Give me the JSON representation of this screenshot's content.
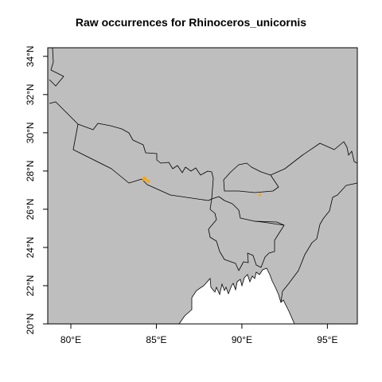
{
  "title": "Raw occurrences for Rhinoceros_unicornis",
  "colors": {
    "land": "#bebebe",
    "sea": "#ffffff",
    "border": "#000000",
    "occurrence": "#ffa500"
  },
  "axes": {
    "x_ticks": [
      {
        "value": 80,
        "label": "80°E"
      },
      {
        "value": 85,
        "label": "85°E"
      },
      {
        "value": 90,
        "label": "90°E"
      },
      {
        "value": 95,
        "label": "95°E"
      }
    ],
    "y_ticks": [
      {
        "value": 20,
        "label": "20°N"
      },
      {
        "value": 22,
        "label": "22°N"
      },
      {
        "value": 24,
        "label": "24°N"
      },
      {
        "value": 26,
        "label": "26°N"
      },
      {
        "value": 28,
        "label": "28°N"
      },
      {
        "value": 30,
        "label": "30°N"
      },
      {
        "value": 32,
        "label": "32°N"
      },
      {
        "value": 34,
        "label": "34°N"
      }
    ],
    "xlim": [
      78.65,
      96.75
    ],
    "ylim": [
      20.0,
      34.45
    ]
  },
  "occurrences": [
    {
      "lon": 84.25,
      "lat": 27.55
    },
    {
      "lon": 84.35,
      "lat": 27.6
    },
    {
      "lon": 84.45,
      "lat": 27.5
    },
    {
      "lon": 84.55,
      "lat": 27.45
    },
    {
      "lon": 84.3,
      "lat": 27.65
    },
    {
      "lon": 91.05,
      "lat": 26.75
    }
  ]
}
